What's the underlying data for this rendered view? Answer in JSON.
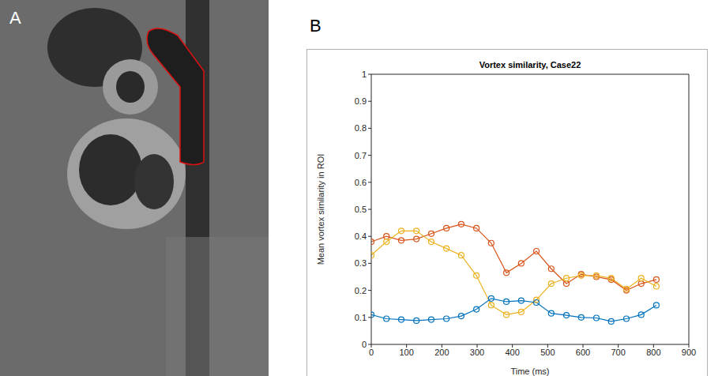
{
  "panels": {
    "a": {
      "label": "A"
    },
    "b": {
      "label": "B"
    }
  },
  "chart_data": {
    "type": "line",
    "title": "Vortex similarity, Case22",
    "x_label": "Time (ms)",
    "y_label": "Mean vortex similarity in ROI",
    "x": [
      0,
      43,
      85,
      128,
      170,
      213,
      255,
      298,
      340,
      383,
      425,
      468,
      510,
      553,
      595,
      638,
      680,
      723,
      765,
      808
    ],
    "series": [
      {
        "color": "#D95319",
        "marker": "circle",
        "line_style": "solid",
        "values": [
          0.38,
          0.4,
          0.385,
          0.39,
          0.41,
          0.43,
          0.445,
          0.43,
          0.375,
          0.265,
          0.3,
          0.345,
          0.28,
          0.225,
          0.26,
          0.25,
          0.24,
          0.2,
          0.225,
          0.24
        ]
      },
      {
        "color": "#EDB120",
        "marker": "circle",
        "line_style": "solid",
        "values": [
          0.33,
          0.38,
          0.42,
          0.42,
          0.38,
          0.355,
          0.33,
          0.255,
          0.145,
          0.11,
          0.12,
          0.165,
          0.225,
          0.245,
          0.255,
          0.255,
          0.245,
          0.205,
          0.245,
          0.215
        ]
      },
      {
        "color": "#0072BD",
        "marker": "circle",
        "line_style": "solid",
        "values": [
          0.11,
          0.095,
          0.092,
          0.088,
          0.092,
          0.095,
          0.105,
          0.13,
          0.17,
          0.158,
          0.162,
          0.155,
          0.115,
          0.108,
          0.1,
          0.098,
          0.085,
          0.095,
          0.11,
          0.145
        ]
      }
    ],
    "xlim": [
      0,
      900
    ],
    "ylim": [
      0,
      1
    ],
    "xticks": [
      0,
      100,
      200,
      300,
      400,
      500,
      600,
      700,
      800,
      900
    ],
    "yticks": [
      0,
      0.1,
      0.2,
      0.3,
      0.4,
      0.5,
      0.6,
      0.7,
      0.8,
      0.9,
      1
    ],
    "grid": false
  }
}
